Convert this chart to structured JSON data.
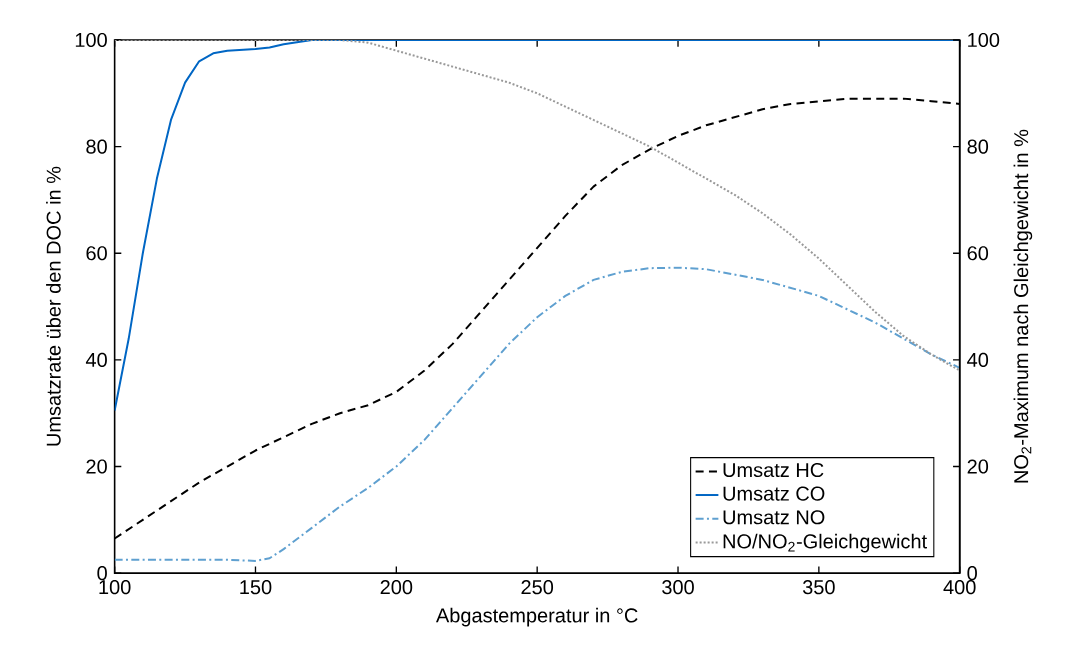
{
  "chart_data": {
    "type": "line",
    "xlabel": "Abgastemperatur in °C",
    "ylabel": "Umsatzrate über den DOC in %",
    "y2label": "NO$_{2}$-Maximum nach Gleichgewicht in %",
    "xlim": [
      100,
      400
    ],
    "xticks": [
      100,
      150,
      200,
      250,
      300,
      350,
      400
    ],
    "ylim": [
      0,
      100
    ],
    "yticks": [
      0,
      20,
      40,
      60,
      80,
      100
    ],
    "y2lim": [
      0,
      100
    ],
    "y2ticks": [
      0,
      20,
      40,
      60,
      80,
      100
    ],
    "legend": "bottom right",
    "grid": false,
    "marker": "none",
    "series": [
      {
        "name": "Umsatz HC",
        "color": "#000000",
        "line_style": "dashed",
        "x": [
          100,
          110,
          120,
          130,
          140,
          150,
          160,
          170,
          180,
          190,
          200,
          210,
          220,
          230,
          240,
          250,
          260,
          270,
          280,
          290,
          300,
          310,
          320,
          330,
          340,
          350,
          360,
          370,
          380,
          390,
          400
        ],
        "values": [
          6.5,
          10,
          13.5,
          17,
          20,
          23,
          25.5,
          28,
          30,
          31.5,
          34,
          38,
          43,
          49,
          55,
          61,
          67,
          72.5,
          76.5,
          79.5,
          82,
          84,
          85.5,
          87,
          88,
          88.5,
          89,
          89,
          89,
          88.5,
          88
        ]
      },
      {
        "name": "Umsatz CO",
        "color": "#0066c4",
        "line_style": "solid",
        "x": [
          100,
          105,
          110,
          115,
          120,
          125,
          130,
          135,
          140,
          150,
          155,
          160,
          170,
          400
        ],
        "values": [
          30.5,
          44,
          60,
          74,
          85,
          92,
          96,
          97.5,
          98,
          98.3,
          98.6,
          99.2,
          100,
          100
        ]
      },
      {
        "name": "Umsatz NO",
        "color": "#5fa0d0",
        "line_style": "dashdot",
        "x": [
          100,
          120,
          140,
          150,
          155,
          160,
          170,
          180,
          190,
          200,
          210,
          220,
          230,
          240,
          250,
          260,
          270,
          280,
          290,
          300,
          310,
          320,
          330,
          340,
          350,
          360,
          370,
          380,
          390,
          400
        ],
        "values": [
          2.5,
          2.5,
          2.5,
          2.3,
          2.8,
          4.5,
          8.5,
          12.5,
          16,
          20,
          25,
          31,
          37,
          43,
          48,
          52,
          55,
          56.5,
          57.2,
          57.3,
          57,
          56,
          55,
          53.5,
          52,
          49.5,
          47,
          44,
          41,
          38.5
        ]
      },
      {
        "name": "NO/NO$_{2}$-Gleichgewicht",
        "color": "#999999",
        "line_style": "dotted",
        "axis": "y2",
        "x": [
          100,
          180,
          190,
          200,
          210,
          220,
          230,
          240,
          250,
          260,
          270,
          280,
          290,
          300,
          310,
          320,
          330,
          340,
          350,
          360,
          370,
          380,
          390,
          400
        ],
        "values": [
          100,
          100,
          99.5,
          98,
          96.5,
          95,
          93.5,
          92,
          90,
          87.5,
          85,
          82.5,
          80,
          77,
          74,
          71,
          67.5,
          63.5,
          59,
          54,
          49,
          44.5,
          41,
          38
        ]
      }
    ]
  }
}
